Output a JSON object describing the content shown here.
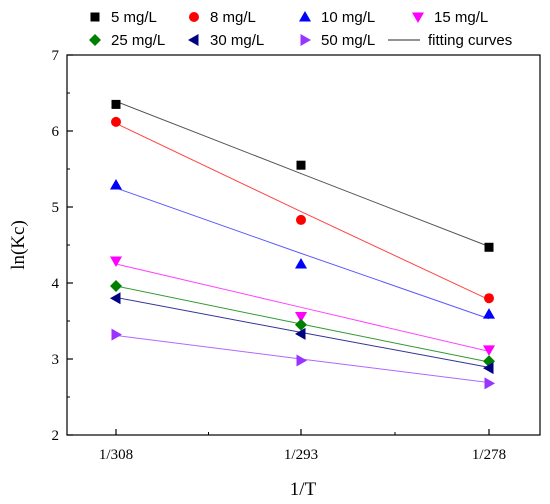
{
  "chart_data": {
    "type": "scatter",
    "xlabel": "1/T",
    "ylabel": "ln(Kc)",
    "x_categories": [
      "1/308",
      "1/293",
      "1/278"
    ],
    "ylim": [
      2,
      7
    ],
    "yticks": [
      2,
      3,
      4,
      5,
      6,
      7
    ],
    "grid": false,
    "legend_position": "top",
    "series": [
      {
        "name": "5 mg/L",
        "marker": "square",
        "color": "#000000",
        "values": [
          6.35,
          5.55,
          4.47
        ],
        "fit": [
          6.39,
          5.44,
          4.48
        ],
        "fit_color": "#555555"
      },
      {
        "name": "8 mg/L",
        "marker": "circle",
        "color": "#ff0000",
        "values": [
          6.12,
          4.83,
          3.8
        ],
        "fit": [
          6.1,
          4.94,
          3.78
        ],
        "fit_color": "#ff4444"
      },
      {
        "name": "10 mg/L",
        "marker": "triangle-up",
        "color": "#0000ff",
        "values": [
          5.29,
          4.25,
          3.59
        ],
        "fit": [
          5.25,
          4.39,
          3.53
        ],
        "fit_color": "#5a5aff"
      },
      {
        "name": "15 mg/L",
        "marker": "triangle-down",
        "color": "#ff00ff",
        "values": [
          4.29,
          3.56,
          3.12
        ],
        "fit": [
          4.25,
          3.68,
          3.1
        ],
        "fit_color": "#ff44ff"
      },
      {
        "name": "25 mg/L",
        "marker": "diamond",
        "color": "#008000",
        "values": [
          3.96,
          3.45,
          2.97
        ],
        "fit": [
          3.96,
          3.46,
          2.96
        ],
        "fit_color": "#339933"
      },
      {
        "name": "30 mg/L",
        "marker": "triangle-left",
        "color": "#000080",
        "values": [
          3.8,
          3.33,
          2.88
        ],
        "fit": [
          3.81,
          3.35,
          2.89
        ],
        "fit_color": "#333399"
      },
      {
        "name": "50 mg/L",
        "marker": "triangle-right",
        "color": "#9933ff",
        "values": [
          3.32,
          2.98,
          2.68
        ],
        "fit": [
          3.31,
          3.0,
          2.69
        ],
        "fit_color": "#b366ff"
      }
    ],
    "fit_legend_label": "fitting curves"
  }
}
